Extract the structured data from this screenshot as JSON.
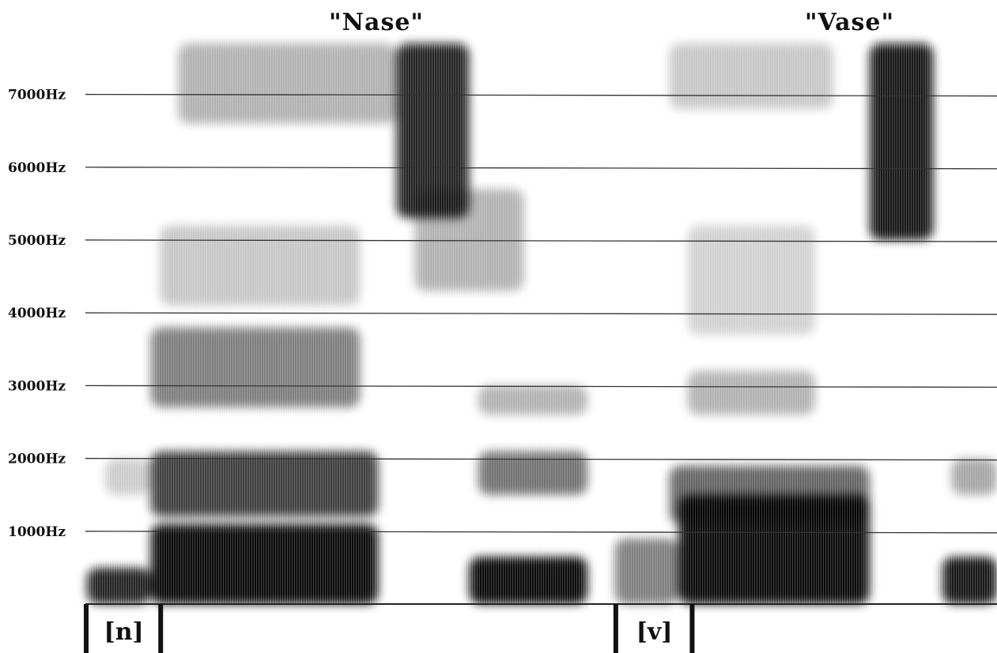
{
  "chart_data": {
    "type": "heatmap",
    "title": "",
    "xlabel": "",
    "ylabel": "",
    "ylim": [
      0,
      7700
    ],
    "y_unit": "Hz",
    "grid": true,
    "colormap": "grayscale",
    "ink_color": "#000000",
    "gridline_color": "#333333",
    "y_ticks": [
      {
        "value": 1000,
        "label": "1000Hz"
      },
      {
        "value": 2000,
        "label": "2000Hz"
      },
      {
        "value": 3000,
        "label": "3000Hz"
      },
      {
        "value": 4000,
        "label": "4000Hz"
      },
      {
        "value": 5000,
        "label": "5000Hz"
      },
      {
        "value": 6000,
        "label": "6000Hz"
      },
      {
        "value": 7000,
        "label": "7000Hz"
      }
    ],
    "words": [
      {
        "label": "\"Nase\"",
        "t_center": 0.318
      },
      {
        "label": "\"Vase\"",
        "t_center": 0.838
      }
    ],
    "segments": [
      {
        "label": "[n]",
        "t_start": 0.0,
        "t_end": 0.081
      },
      {
        "label": "[v]",
        "t_start": 0.582,
        "t_end": 0.665
      }
    ],
    "energy_regions": [
      {
        "name": "n-murmur",
        "t": [
          0.0,
          0.07
        ],
        "f": [
          0,
          500
        ],
        "intensity": 0.85
      },
      {
        "name": "n-high",
        "t": [
          0.02,
          0.07
        ],
        "f": [
          1500,
          2000
        ],
        "intensity": 0.2
      },
      {
        "name": "a-low",
        "t": [
          0.07,
          0.32
        ],
        "f": [
          0,
          1100
        ],
        "intensity": 0.95
      },
      {
        "name": "a-f2",
        "t": [
          0.07,
          0.32
        ],
        "f": [
          1200,
          2100
        ],
        "intensity": 0.75
      },
      {
        "name": "a-f3",
        "t": [
          0.07,
          0.3
        ],
        "f": [
          2700,
          3800
        ],
        "intensity": 0.5
      },
      {
        "name": "a-f4",
        "t": [
          0.08,
          0.3
        ],
        "f": [
          4100,
          5200
        ],
        "intensity": 0.22
      },
      {
        "name": "a-high",
        "t": [
          0.1,
          0.34
        ],
        "f": [
          6600,
          7700
        ],
        "intensity": 0.3
      },
      {
        "name": "s1-fric",
        "t": [
          0.34,
          0.42
        ],
        "f": [
          5300,
          7700
        ],
        "intensity": 0.85
      },
      {
        "name": "s1-tail",
        "t": [
          0.36,
          0.48
        ],
        "f": [
          4300,
          5700
        ],
        "intensity": 0.3
      },
      {
        "name": "e1-low",
        "t": [
          0.42,
          0.55
        ],
        "f": [
          0,
          650
        ],
        "intensity": 0.95
      },
      {
        "name": "e1-f2",
        "t": [
          0.43,
          0.55
        ],
        "f": [
          1500,
          2100
        ],
        "intensity": 0.55
      },
      {
        "name": "e1-f3",
        "t": [
          0.43,
          0.55
        ],
        "f": [
          2600,
          3000
        ],
        "intensity": 0.3
      },
      {
        "name": "v-murmur",
        "t": [
          0.58,
          0.65
        ],
        "f": [
          0,
          900
        ],
        "intensity": 0.5
      },
      {
        "name": "a2-low",
        "t": [
          0.65,
          0.86
        ],
        "f": [
          0,
          1500
        ],
        "intensity": 0.95
      },
      {
        "name": "a2-f2",
        "t": [
          0.64,
          0.86
        ],
        "f": [
          1100,
          1900
        ],
        "intensity": 0.6
      },
      {
        "name": "a2-f3",
        "t": [
          0.66,
          0.8
        ],
        "f": [
          2600,
          3200
        ],
        "intensity": 0.3
      },
      {
        "name": "a2-f4",
        "t": [
          0.66,
          0.8
        ],
        "f": [
          3700,
          5200
        ],
        "intensity": 0.18
      },
      {
        "name": "a2-high",
        "t": [
          0.64,
          0.82
        ],
        "f": [
          6800,
          7700
        ],
        "intensity": 0.22
      },
      {
        "name": "s2-fric",
        "t": [
          0.86,
          0.93
        ],
        "f": [
          5000,
          7700
        ],
        "intensity": 0.9
      },
      {
        "name": "e2-low",
        "t": [
          0.94,
          1.0
        ],
        "f": [
          0,
          650
        ],
        "intensity": 0.9
      },
      {
        "name": "e2-f2",
        "t": [
          0.95,
          1.0
        ],
        "f": [
          1500,
          2000
        ],
        "intensity": 0.35
      }
    ]
  }
}
